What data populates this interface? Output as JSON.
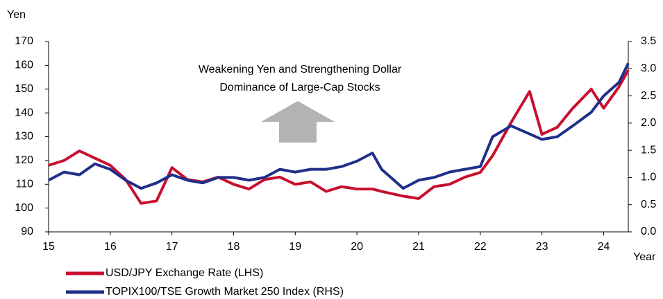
{
  "chart_data": {
    "type": "line",
    "y_label": "Yen",
    "x_label": "Year",
    "annotations": [
      "Weakening Yen and Strengthening Dollar",
      "Dominance of Large-Cap Stocks"
    ],
    "x": [
      15.0,
      15.25,
      15.5,
      15.75,
      16.0,
      16.25,
      16.5,
      16.75,
      17.0,
      17.25,
      17.5,
      17.75,
      18.0,
      18.25,
      18.5,
      18.75,
      19.0,
      19.25,
      19.5,
      19.75,
      20.0,
      20.25,
      20.4,
      20.75,
      21.0,
      21.25,
      21.5,
      21.75,
      22.0,
      22.2,
      22.5,
      22.8,
      23.0,
      23.25,
      23.5,
      23.8,
      24.0,
      24.25,
      24.4
    ],
    "series": [
      {
        "name": "USD/JPY Exchange Rate (LHS)",
        "color": "#c8102e",
        "values": [
          118,
          120,
          124,
          121,
          118,
          112,
          102,
          103,
          117,
          112,
          111,
          113,
          110,
          108,
          112,
          113,
          110,
          111,
          107,
          109,
          108,
          108,
          107,
          105,
          104,
          109,
          110,
          113,
          115,
          122,
          136,
          149,
          131,
          134,
          142,
          150,
          142,
          151,
          158
        ]
      },
      {
        "name": "TOPIX100/TSE Growth Market 250 Index (RHS)",
        "color": "#1f2f8a",
        "axis": "y2",
        "values": [
          0.95,
          1.1,
          1.05,
          1.25,
          1.15,
          0.95,
          0.8,
          0.9,
          1.05,
          0.95,
          0.9,
          1.0,
          1.0,
          0.95,
          1.0,
          1.15,
          1.1,
          1.15,
          1.15,
          1.2,
          1.3,
          1.45,
          1.15,
          0.8,
          0.95,
          1.0,
          1.1,
          1.15,
          1.2,
          1.75,
          1.95,
          1.8,
          1.7,
          1.75,
          1.95,
          2.2,
          2.5,
          2.75,
          3.1
        ]
      }
    ],
    "xlim": [
      15,
      24.4
    ],
    "xticks": [
      15,
      16,
      17,
      18,
      19,
      20,
      21,
      22,
      23,
      24
    ],
    "ylim": [
      90,
      170
    ],
    "yticks": [
      90,
      100,
      110,
      120,
      130,
      140,
      150,
      160,
      170
    ],
    "y2lim": [
      0,
      3.5
    ],
    "y2ticks": [
      {
        "value": 0,
        "label": "0.0"
      },
      {
        "value": 0.5,
        "label": "0.5"
      },
      {
        "value": 1,
        "label": "1.0"
      },
      {
        "value": 1.5,
        "label": "1.5"
      },
      {
        "value": 2,
        "label": "2.0"
      },
      {
        "value": 2.5,
        "label": "2.5"
      },
      {
        "value": 3,
        "label": "3.0"
      },
      {
        "value": 3.5,
        "label": "3.5"
      }
    ]
  }
}
